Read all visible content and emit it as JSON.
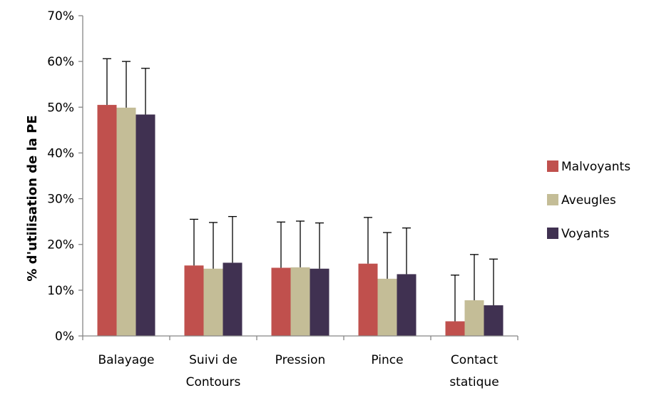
{
  "chart_data": {
    "type": "bar",
    "categories": [
      [
        "Balayage"
      ],
      [
        "Suivi de",
        "Contours"
      ],
      [
        "Pression"
      ],
      [
        "Pince"
      ],
      [
        "Contact",
        "statique"
      ]
    ],
    "series": [
      {
        "name": "Malvoyants",
        "color": "#c0504d",
        "values": [
          50.5,
          15.4,
          14.9,
          15.8,
          3.2
        ],
        "errors": [
          10.1,
          10.1,
          10.0,
          10.1,
          10.1
        ]
      },
      {
        "name": "Aveugles",
        "color": "#c4bd97",
        "values": [
          49.9,
          14.7,
          15.0,
          12.5,
          7.8
        ],
        "errors": [
          10.1,
          10.1,
          10.1,
          10.1,
          10.0
        ]
      },
      {
        "name": "Voyants",
        "color": "#403151",
        "values": [
          48.4,
          16.0,
          14.7,
          13.5,
          6.7
        ],
        "errors": [
          10.1,
          10.1,
          10.0,
          10.1,
          10.1
        ]
      }
    ],
    "ylabel": "% d'utilisation de la PE",
    "xlabel": "",
    "ylim": [
      0,
      70
    ],
    "yticks": [
      "0%",
      "10%",
      "20%",
      "30%",
      "40%",
      "50%",
      "60%",
      "70%"
    ],
    "grid": false,
    "legend_position": "right",
    "error_bars": "upper"
  }
}
